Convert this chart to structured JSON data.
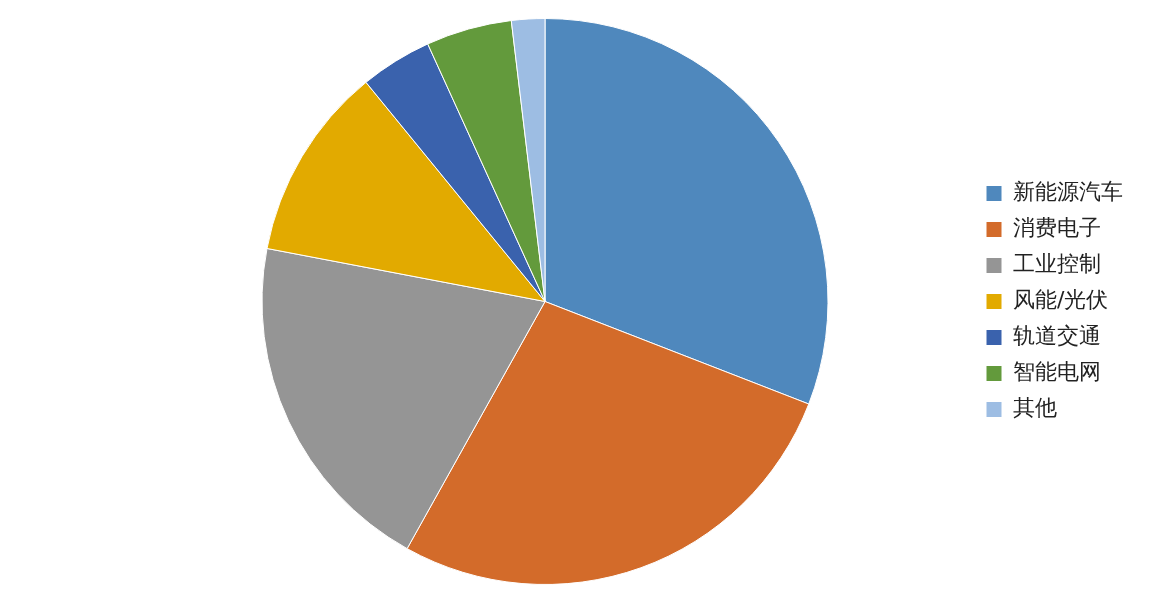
{
  "chart_data": {
    "type": "pie",
    "categories": [
      "新能源汽车",
      "消费电子",
      "工业控制",
      "风能/光伏",
      "轨道交通",
      "智能电网",
      "其他"
    ],
    "values": [
      30.9,
      27.2,
      19.9,
      11.1,
      4.1,
      4.9,
      1.9
    ],
    "colors": [
      "#4f88bd",
      "#d36b2a",
      "#959595",
      "#e2aa00",
      "#3a62ad",
      "#639a3c",
      "#9dbde3"
    ],
    "legend": "right"
  }
}
